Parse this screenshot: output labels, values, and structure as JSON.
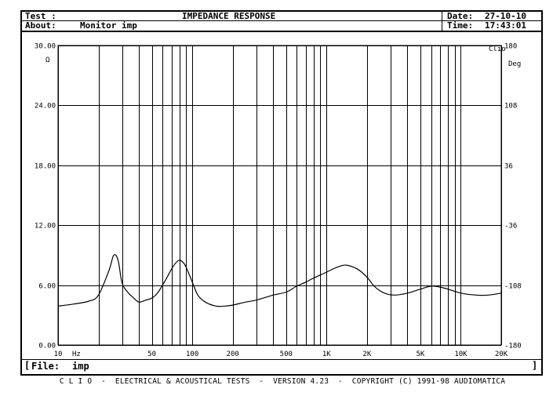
{
  "header": {
    "test_label": "Test :",
    "about_label": "About:",
    "about_value": "Monitor imp",
    "title": "IMPEDANCE RESPONSE",
    "date_label": "Date:",
    "date_value": "27-10-10",
    "time_label": "Time:",
    "time_value": "17:43:01"
  },
  "file": {
    "label": "File:",
    "value": "imp"
  },
  "footer": {
    "text": "C L I O  -  ELECTRICAL & ACOUSTICAL TESTS  -  VERSION 4.23  -  COPYRIGHT (C) 1991-98 AUDIOMATICA"
  },
  "chart_data": {
    "type": "line",
    "title": "IMPEDANCE RESPONSE",
    "xlabel": "Hz",
    "ylabel": "Ω",
    "y2label": "Deg",
    "curve_label": "Clio",
    "x_scale": "log",
    "xlim": [
      10,
      20000
    ],
    "ylim": [
      0,
      30
    ],
    "y2lim": [
      -180,
      180
    ],
    "grid": true,
    "x_ticks": [
      {
        "value": 10,
        "label": "10"
      },
      {
        "value": 50,
        "label": "50"
      },
      {
        "value": 100,
        "label": "100"
      },
      {
        "value": 200,
        "label": "200"
      },
      {
        "value": 500,
        "label": "500"
      },
      {
        "value": 1000,
        "label": "1K"
      },
      {
        "value": 2000,
        "label": "2K"
      },
      {
        "value": 5000,
        "label": "5K"
      },
      {
        "value": 10000,
        "label": "10K"
      },
      {
        "value": 20000,
        "label": "20K"
      }
    ],
    "y_ticks": [
      "0.00",
      "6.00",
      "12.00",
      "18.00",
      "24.00",
      "30.00"
    ],
    "y2_ticks": [
      "-180",
      "-108",
      "-36",
      "36",
      "108",
      "180"
    ],
    "series": [
      {
        "x": [
          10,
          13,
          17,
          20,
          24,
          26,
          28,
          30,
          33,
          36,
          40,
          45,
          50,
          55,
          60,
          65,
          70,
          75,
          80,
          85,
          90,
          100,
          110,
          125,
          150,
          175,
          200,
          250,
          300,
          400,
          500,
          600,
          700,
          800,
          1000,
          1200,
          1400,
          1700,
          2000,
          2300,
          2700,
          3200,
          4000,
          5000,
          6000,
          7000,
          8000,
          10000,
          13000,
          16000,
          20000
        ],
        "values": [
          3.9,
          4.1,
          4.4,
          5.0,
          7.5,
          9.0,
          8.5,
          6.2,
          5.3,
          4.8,
          4.3,
          4.5,
          4.7,
          5.2,
          6.0,
          6.8,
          7.6,
          8.2,
          8.5,
          8.3,
          7.8,
          6.3,
          5.0,
          4.3,
          3.9,
          3.9,
          4.0,
          4.3,
          4.5,
          5.0,
          5.3,
          5.9,
          6.3,
          6.7,
          7.3,
          7.8,
          8.0,
          7.6,
          6.8,
          5.8,
          5.2,
          5.0,
          5.2,
          5.6,
          5.9,
          5.8,
          5.6,
          5.2,
          5.0,
          5.0,
          5.2
        ]
      }
    ]
  }
}
